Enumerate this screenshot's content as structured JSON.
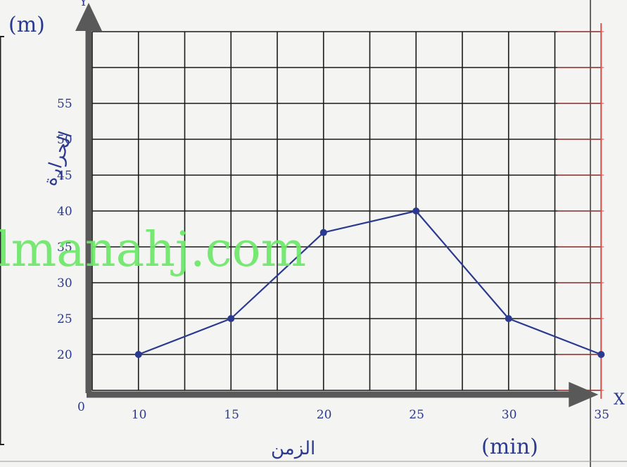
{
  "chart_data": {
    "type": "line",
    "title": "",
    "xlabel": "الزمن",
    "x_unit": "(min)",
    "y_unit": "(m)",
    "ylabel": "الحرارة",
    "x_axis_letter": "X",
    "y_axis_letter": "Y",
    "origin_label": "0",
    "x": [
      10,
      15,
      20,
      25,
      30,
      35
    ],
    "y": [
      20,
      25,
      37,
      40,
      25,
      20
    ],
    "x_ticks": [
      "10",
      "15",
      "20",
      "25",
      "30",
      "35"
    ],
    "y_ticks": [
      {
        "value": 20,
        "label": "20"
      },
      {
        "value": 25,
        "label": "25"
      },
      {
        "value": 30,
        "label": "30"
      },
      {
        "value": 35,
        "label": "35"
      },
      {
        "value": 40,
        "label": "40"
      },
      {
        "value": 45,
        "label": "45"
      },
      {
        "value": 50,
        "label": "50"
      },
      {
        "value": 55,
        "label": "55"
      }
    ],
    "xlim": [
      7.5,
      35
    ],
    "ylim": [
      15,
      65
    ],
    "grid": true,
    "line_color": "#2b3a8f",
    "grid_color": "#1a1a1a",
    "axis_color": "#595959"
  },
  "watermark": "lmanahj.com"
}
